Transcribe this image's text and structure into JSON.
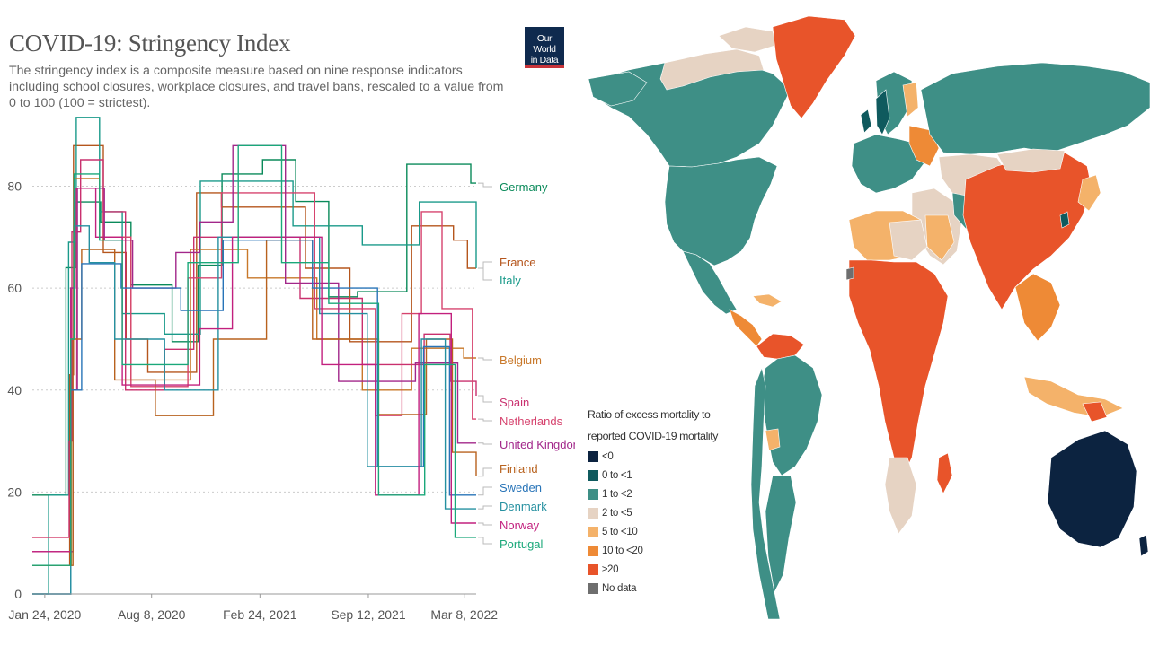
{
  "left": {
    "title": "COVID-19: Stringency Index",
    "subtitle": "The stringency index is a composite measure based on nine response indicators including school closures, workplace closures, and travel bans, rescaled to a value from 0 to 100 (100 = strictest).",
    "logo": {
      "line1": "Our World",
      "line2": "in Data",
      "bg": "#0f2a4e",
      "accent": "#c8343a"
    }
  },
  "chart_data": [
    {
      "type": "line",
      "title": "COVID-19: Stringency Index",
      "xlabel": "",
      "ylabel": "",
      "x_tick_labels": [
        "Jan 24, 2020",
        "Aug 8, 2020",
        "Feb 24, 2021",
        "Sep 12, 2021",
        "Mar 8, 2022"
      ],
      "y_ticks": [
        0,
        20,
        40,
        60,
        80
      ],
      "ylim": [
        0,
        94
      ],
      "xlim": [
        "2020-01-01",
        "2022-03-30"
      ],
      "grid": "horizontal dotted",
      "legend": "end-of-line labels, right",
      "series": [
        {
          "name": "Germany",
          "color": "#0a8a5a",
          "x": [
            "2020-01-01",
            "2020-03-03",
            "2020-03-22",
            "2020-05-06",
            "2020-07-01",
            "2020-09-15",
            "2020-11-02",
            "2020-12-16",
            "2021-03-01",
            "2021-05-01",
            "2021-07-01",
            "2021-08-23",
            "2021-11-22",
            "2022-03-20",
            "2022-03-30"
          ],
          "y": [
            19.4,
            64,
            76.9,
            73,
            60.6,
            49.5,
            64.5,
            82.4,
            85.2,
            77,
            58.3,
            59.3,
            84.3,
            80.6,
            80.6
          ]
        },
        {
          "name": "France",
          "color": "#b5561d",
          "x": [
            "2020-01-01",
            "2020-03-10",
            "2020-03-17",
            "2020-05-11",
            "2020-06-22",
            "2020-08-01",
            "2020-10-30",
            "2020-12-15",
            "2021-05-19",
            "2021-08-09",
            "2021-12-01",
            "2022-02-16",
            "2022-03-14",
            "2022-03-30"
          ],
          "y": [
            5.6,
            43,
            87.96,
            67,
            50,
            43.5,
            78.7,
            75.9,
            63.9,
            49.5,
            72.2,
            69.4,
            63.9,
            63.9
          ]
        },
        {
          "name": "Italy",
          "color": "#1a9a8a",
          "x": [
            "2020-01-01",
            "2020-01-31",
            "2020-03-08",
            "2020-03-22",
            "2020-05-04",
            "2020-06-15",
            "2020-09-01",
            "2020-11-06",
            "2021-04-26",
            "2021-09-01",
            "2021-12-15",
            "2022-03-30"
          ],
          "y": [
            0,
            19.4,
            69,
            93.5,
            75,
            55,
            51,
            81,
            72.2,
            68.5,
            76.9,
            63.9
          ]
        },
        {
          "name": "Belgium",
          "color": "#c8782a",
          "x": [
            "2020-01-01",
            "2020-03-13",
            "2020-03-18",
            "2020-05-04",
            "2020-07-01",
            "2020-10-19",
            "2021-02-01",
            "2021-06-09",
            "2021-09-01",
            "2021-12-01",
            "2022-03-07",
            "2022-03-30"
          ],
          "y": [
            5.6,
            50,
            81.5,
            70,
            42,
            67.6,
            62,
            50,
            40,
            48.2,
            46.3,
            46.3
          ]
        },
        {
          "name": "Spain",
          "color": "#c9306e",
          "x": [
            "2020-01-01",
            "2020-03-09",
            "2020-03-14",
            "2020-03-30",
            "2020-05-11",
            "2020-06-21",
            "2020-09-01",
            "2020-10-25",
            "2021-05-09",
            "2021-09-01",
            "2021-12-24",
            "2022-02-10",
            "2022-03-30"
          ],
          "y": [
            11.1,
            30,
            71,
            85.2,
            75,
            40,
            48,
            70,
            58,
            45,
            51,
            41.7,
            38.9
          ]
        },
        {
          "name": "Netherlands",
          "color": "#d6436e",
          "x": [
            "2020-01-01",
            "2020-03-12",
            "2020-03-23",
            "2020-05-11",
            "2020-07-01",
            "2020-10-14",
            "2020-12-15",
            "2021-06-05",
            "2021-09-25",
            "2021-11-13",
            "2021-12-19",
            "2022-01-26",
            "2022-03-23",
            "2022-03-30"
          ],
          "y": [
            11.1,
            40,
            79.6,
            70,
            40.7,
            62,
            78.7,
            56,
            35,
            55,
            75,
            56,
            34.3,
            34.3
          ]
        },
        {
          "name": "United Kingdom",
          "color": "#a2278a",
          "x": [
            "2020-01-01",
            "2020-03-16",
            "2020-03-24",
            "2020-05-13",
            "2020-07-04",
            "2020-09-22",
            "2020-11-05",
            "2021-01-05",
            "2021-04-12",
            "2021-07-19",
            "2021-12-08",
            "2022-02-24",
            "2022-03-30"
          ],
          "y": [
            8.3,
            40,
            79.6,
            69.4,
            60,
            67,
            73,
            87.96,
            61,
            41.7,
            45.3,
            29.6,
            29.6
          ]
        },
        {
          "name": "Finland",
          "color": "#b8621e",
          "x": [
            "2020-01-01",
            "2020-03-16",
            "2020-04-01",
            "2020-06-01",
            "2020-08-15",
            "2020-11-30",
            "2021-03-08",
            "2021-06-01",
            "2021-10-01",
            "2021-12-28",
            "2022-02-14",
            "2022-03-30"
          ],
          "y": [
            5.6,
            50,
            67.6,
            42,
            35,
            50,
            69.4,
            50,
            35.2,
            50,
            27.8,
            23.1
          ]
        },
        {
          "name": "Sweden",
          "color": "#2874b8",
          "x": [
            "2020-01-01",
            "2020-03-12",
            "2020-04-01",
            "2020-06-13",
            "2020-10-01",
            "2020-12-18",
            "2021-06-01",
            "2021-09-29",
            "2021-12-23",
            "2022-02-09",
            "2022-03-30"
          ],
          "y": [
            0,
            40,
            64.8,
            60,
            55.6,
            69.4,
            60,
            25,
            48.5,
            19.4,
            19.4
          ]
        },
        {
          "name": "Denmark",
          "color": "#2590a0",
          "x": [
            "2020-01-01",
            "2020-03-12",
            "2020-03-18",
            "2020-04-15",
            "2020-06-01",
            "2020-09-01",
            "2020-12-09",
            "2021-02-28",
            "2021-06-14",
            "2021-09-10",
            "2021-12-19",
            "2022-02-01",
            "2022-03-30"
          ],
          "y": [
            0,
            60,
            72.2,
            65,
            50,
            40,
            70,
            70,
            55,
            25,
            50,
            16.7,
            16.7
          ]
        },
        {
          "name": "Norway",
          "color": "#c2207e",
          "x": [
            "2020-01-01",
            "2020-03-12",
            "2020-03-20",
            "2020-04-27",
            "2020-06-15",
            "2020-11-05",
            "2021-01-04",
            "2021-06-18",
            "2021-09-25",
            "2021-12-14",
            "2022-02-12",
            "2022-03-30"
          ],
          "y": [
            8.3,
            60,
            79.6,
            70,
            41,
            52,
            70,
            45,
            19.4,
            55,
            13.9,
            13.9
          ]
        },
        {
          "name": "Portugal",
          "color": "#1aa87a",
          "x": [
            "2020-01-01",
            "2020-03-12",
            "2020-03-18",
            "2020-05-04",
            "2020-06-15",
            "2020-10-14",
            "2021-01-15",
            "2021-04-05",
            "2021-07-01",
            "2021-10-01",
            "2021-12-25",
            "2022-02-19",
            "2022-03-30"
          ],
          "y": [
            5.6,
            50,
            82.4,
            69.4,
            45,
            65,
            87.96,
            65,
            57,
            19.4,
            45,
            11.1,
            11.1
          ]
        }
      ]
    },
    {
      "type": "choropleth",
      "title": "Ratio of excess mortality to reported COVID-19 mortality",
      "categories": [
        "<0",
        "0 to <1",
        "1 to <2",
        "2 to <5",
        "5 to <10",
        "10 to <20",
        "≥20",
        "No data"
      ],
      "colors": [
        "#0c2340",
        "#0f5a5e",
        "#3e8f86",
        "#e6d3c3",
        "#f4b26a",
        "#ee8a36",
        "#e8542a",
        "#6e6e6e"
      ]
    }
  ],
  "right": {
    "legend_title_line1": "Ratio of excess mortality to",
    "legend_title_line2": "reported COVID-19 mortality",
    "legend_items": [
      {
        "label": "<0",
        "color": "#0c2340"
      },
      {
        "label": "0 to <1",
        "color": "#0f5a5e"
      },
      {
        "label": "1 to <2",
        "color": "#3e8f86"
      },
      {
        "label": "2 to <5",
        "color": "#e6d3c3"
      },
      {
        "label": "5 to <10",
        "color": "#f4b26a"
      },
      {
        "label": "10 to <20",
        "color": "#ee8a36"
      },
      {
        "label": "≥20",
        "color": "#e8542a"
      },
      {
        "label": "No data",
        "color": "#6e6e6e"
      }
    ]
  }
}
